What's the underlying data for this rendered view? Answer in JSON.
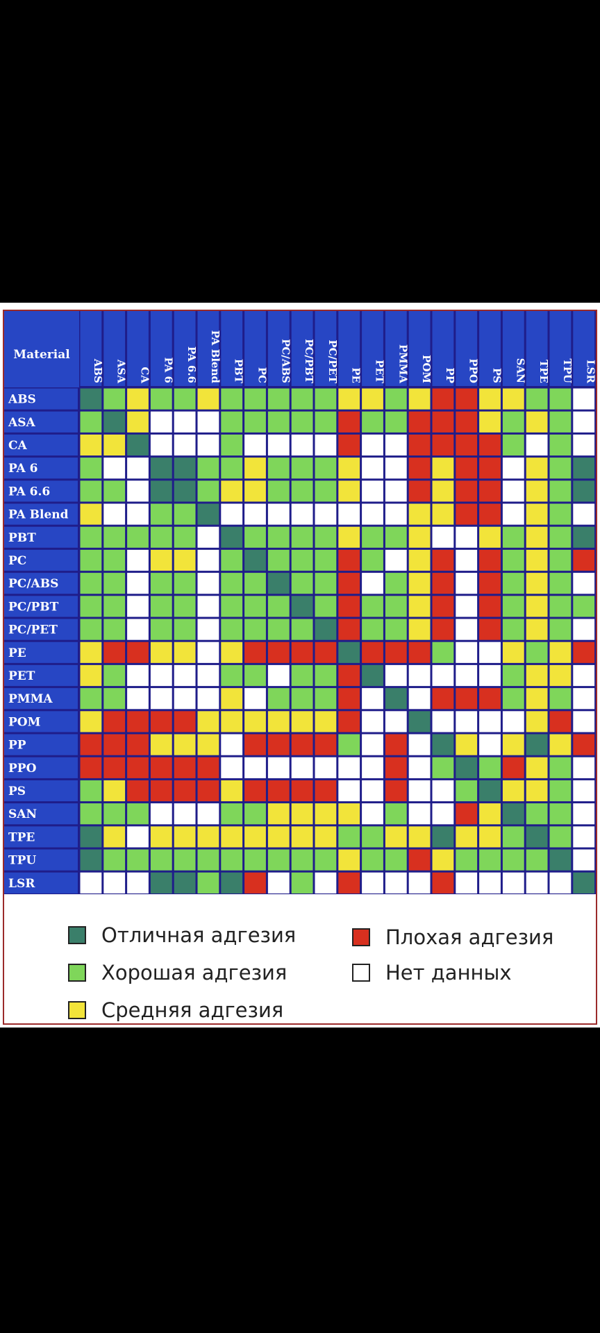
{
  "chart_data": {
    "type": "heatmap",
    "corner_label": "Material",
    "rows": [
      "ABS",
      "ASA",
      "CA",
      "PA 6",
      "PA 6.6",
      "PA Blend",
      "PBT",
      "PC",
      "PC/ABS",
      "PC/PBT",
      "PC/PET",
      "PE",
      "PET",
      "PMMA",
      "POM",
      "PP",
      "PPO",
      "PS",
      "SAN",
      "TPE",
      "TPU",
      "LSR"
    ],
    "columns": [
      "ABS",
      "ASA",
      "CA",
      "PA 6",
      "PA 6.6",
      "PA Blend",
      "PBT",
      "PC",
      "PC/ABS",
      "PC/PBT",
      "PC/PET",
      "PE",
      "PET",
      "PMMA",
      "POM",
      "PP",
      "PPO",
      "PS",
      "SAN",
      "TPE",
      "TPU",
      "LSR"
    ],
    "categories": {
      "E": {
        "label": "Отличная адгезия",
        "color": "#3a7f6a"
      },
      "G": {
        "label": "Хорошая адгезия",
        "color": "#7fd65a"
      },
      "M": {
        "label": "Средняя адгезия",
        "color": "#f2e43a"
      },
      "P": {
        "label": "Плохая адгезия",
        "color": "#d8301f"
      },
      "N": {
        "label": "Нет данных",
        "color": "#ffffff"
      }
    },
    "matrix": [
      [
        "E",
        "G",
        "M",
        "G",
        "G",
        "M",
        "G",
        "G",
        "G",
        "G",
        "G",
        "M",
        "M",
        "G",
        "M",
        "P",
        "P",
        "M",
        "M",
        "G",
        "G",
        "N"
      ],
      [
        "G",
        "E",
        "M",
        "N",
        "N",
        "N",
        "G",
        "G",
        "G",
        "G",
        "G",
        "P",
        "G",
        "G",
        "P",
        "P",
        "P",
        "M",
        "G",
        "M",
        "G",
        "N"
      ],
      [
        "M",
        "M",
        "E",
        "N",
        "N",
        "N",
        "G",
        "N",
        "N",
        "N",
        "N",
        "P",
        "N",
        "N",
        "P",
        "P",
        "P",
        "P",
        "G",
        "N",
        "G",
        "N"
      ],
      [
        "G",
        "N",
        "N",
        "E",
        "E",
        "G",
        "G",
        "M",
        "G",
        "G",
        "G",
        "M",
        "N",
        "N",
        "P",
        "M",
        "P",
        "P",
        "N",
        "M",
        "G",
        "E"
      ],
      [
        "G",
        "G",
        "N",
        "E",
        "E",
        "G",
        "M",
        "M",
        "G",
        "G",
        "G",
        "M",
        "N",
        "N",
        "P",
        "M",
        "P",
        "P",
        "N",
        "M",
        "G",
        "E"
      ],
      [
        "M",
        "N",
        "N",
        "G",
        "G",
        "E",
        "N",
        "N",
        "N",
        "N",
        "N",
        "N",
        "N",
        "N",
        "M",
        "M",
        "P",
        "P",
        "N",
        "M",
        "G",
        "N"
      ],
      [
        "G",
        "G",
        "G",
        "G",
        "G",
        "N",
        "E",
        "G",
        "G",
        "G",
        "G",
        "M",
        "G",
        "G",
        "M",
        "N",
        "N",
        "M",
        "G",
        "M",
        "G",
        "E"
      ],
      [
        "G",
        "G",
        "N",
        "M",
        "M",
        "N",
        "G",
        "E",
        "G",
        "G",
        "G",
        "P",
        "G",
        "N",
        "M",
        "P",
        "N",
        "P",
        "G",
        "M",
        "G",
        "P"
      ],
      [
        "G",
        "G",
        "N",
        "G",
        "G",
        "N",
        "G",
        "G",
        "E",
        "G",
        "G",
        "P",
        "N",
        "G",
        "M",
        "P",
        "N",
        "P",
        "G",
        "M",
        "G",
        "N"
      ],
      [
        "G",
        "G",
        "N",
        "G",
        "G",
        "N",
        "G",
        "G",
        "G",
        "E",
        "G",
        "P",
        "G",
        "G",
        "M",
        "P",
        "N",
        "P",
        "G",
        "M",
        "G",
        "G"
      ],
      [
        "G",
        "G",
        "N",
        "G",
        "G",
        "N",
        "G",
        "G",
        "G",
        "G",
        "E",
        "P",
        "G",
        "G",
        "M",
        "P",
        "N",
        "P",
        "G",
        "M",
        "G",
        "N"
      ],
      [
        "M",
        "P",
        "P",
        "M",
        "M",
        "N",
        "M",
        "P",
        "P",
        "P",
        "P",
        "E",
        "P",
        "P",
        "P",
        "G",
        "N",
        "N",
        "M",
        "G",
        "M",
        "P"
      ],
      [
        "M",
        "G",
        "N",
        "N",
        "N",
        "N",
        "G",
        "G",
        "N",
        "G",
        "G",
        "P",
        "E",
        "N",
        "N",
        "N",
        "N",
        "N",
        "G",
        "M",
        "M",
        "N"
      ],
      [
        "G",
        "G",
        "N",
        "N",
        "N",
        "N",
        "M",
        "N",
        "G",
        "G",
        "G",
        "P",
        "N",
        "E",
        "N",
        "P",
        "P",
        "P",
        "G",
        "M",
        "G",
        "N"
      ],
      [
        "M",
        "P",
        "P",
        "P",
        "P",
        "M",
        "M",
        "M",
        "M",
        "M",
        "M",
        "P",
        "N",
        "N",
        "E",
        "N",
        "N",
        "N",
        "N",
        "M",
        "P",
        "N"
      ],
      [
        "P",
        "P",
        "P",
        "M",
        "M",
        "M",
        "N",
        "P",
        "P",
        "P",
        "P",
        "G",
        "N",
        "P",
        "N",
        "E",
        "M",
        "N",
        "M",
        "E",
        "M",
        "P"
      ],
      [
        "P",
        "P",
        "P",
        "P",
        "P",
        "P",
        "N",
        "N",
        "N",
        "N",
        "N",
        "N",
        "N",
        "P",
        "N",
        "G",
        "E",
        "G",
        "P",
        "M",
        "G",
        "N"
      ],
      [
        "G",
        "M",
        "P",
        "P",
        "P",
        "P",
        "M",
        "P",
        "P",
        "P",
        "P",
        "N",
        "N",
        "P",
        "N",
        "N",
        "G",
        "E",
        "M",
        "M",
        "G",
        "N"
      ],
      [
        "G",
        "G",
        "G",
        "N",
        "N",
        "N",
        "G",
        "G",
        "M",
        "M",
        "M",
        "M",
        "N",
        "G",
        "N",
        "N",
        "P",
        "M",
        "E",
        "G",
        "G",
        "N"
      ],
      [
        "E",
        "M",
        "N",
        "M",
        "M",
        "M",
        "M",
        "M",
        "M",
        "M",
        "M",
        "G",
        "G",
        "M",
        "M",
        "E",
        "M",
        "M",
        "G",
        "E",
        "G",
        "N"
      ],
      [
        "E",
        "G",
        "G",
        "G",
        "G",
        "G",
        "G",
        "G",
        "G",
        "G",
        "G",
        "M",
        "G",
        "G",
        "P",
        "M",
        "G",
        "G",
        "G",
        "G",
        "E",
        "N"
      ],
      [
        "N",
        "N",
        "N",
        "E",
        "E",
        "G",
        "E",
        "P",
        "N",
        "G",
        "N",
        "P",
        "N",
        "N",
        "N",
        "P",
        "N",
        "N",
        "N",
        "N",
        "N",
        "E"
      ]
    ]
  }
}
